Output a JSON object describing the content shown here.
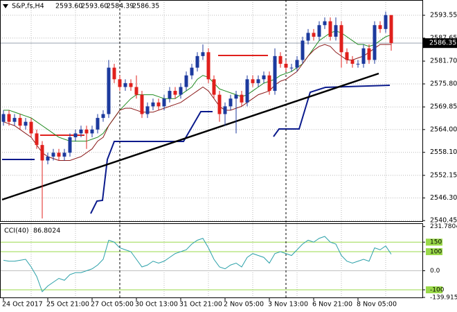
{
  "chart_data": [
    {
      "type": "candlestick",
      "symbol": "S&P,fs,H4",
      "last_bar_labels": [
        "2593.60",
        "2593.60",
        "2584.39",
        "2586.35"
      ],
      "categories": [
        "24 Oct 2017",
        null,
        null,
        null,
        null,
        null,
        null,
        null,
        "25 Oct 21:00",
        null,
        null,
        null,
        null,
        null,
        null,
        null,
        "27 Oct 05:00",
        null,
        null,
        null,
        null,
        null,
        null,
        null,
        "30 Oct 13:00",
        null,
        null,
        null,
        null,
        null,
        null,
        null,
        "31 Oct 21:00",
        null,
        null,
        null,
        null,
        null,
        null,
        null,
        "2 Nov 05:00",
        null,
        null,
        null,
        null,
        null,
        null,
        null,
        "3 Nov 13:00",
        null,
        null,
        null,
        null,
        null,
        null,
        null,
        "6 Nov 21:00",
        null,
        null,
        null,
        null,
        null,
        null,
        null,
        "8 Nov 05:00",
        null,
        null,
        null,
        null,
        null,
        null
      ],
      "open": [
        2566,
        2568,
        2566,
        2567,
        2565,
        2566,
        2563,
        2560,
        2556,
        2557,
        2558,
        2557,
        2558,
        2562,
        2563,
        2564,
        2563,
        2564,
        2567,
        2568,
        2580,
        2577,
        2575,
        2576,
        2575,
        2573,
        2568,
        2570,
        2571,
        2570,
        2572,
        2574,
        2573,
        2575,
        2578,
        2580,
        2583,
        2584,
        2577,
        2573,
        2568,
        2570,
        2572,
        2573,
        2571,
        2577,
        2576,
        2577,
        2578,
        2574,
        2583,
        2581,
        2580,
        2580,
        2582,
        2587,
        2589,
        2588,
        2591,
        2592,
        2588,
        2591,
        2584,
        2582,
        2581,
        2581,
        2585,
        2582,
        2591,
        2590,
        2593.6
      ],
      "high": [
        2569,
        2569,
        2568,
        2568,
        2567,
        2567,
        2564,
        2561,
        2558,
        2559,
        2559,
        2559,
        2563,
        2564,
        2565,
        2565,
        2565,
        2568,
        2569,
        2582,
        2581,
        2578,
        2577,
        2577,
        2578,
        2574,
        2571,
        2572,
        2572,
        2573,
        2575,
        2575,
        2576,
        2579,
        2581,
        2584,
        2586,
        2585,
        2578,
        2574,
        2571,
        2573,
        2574,
        2574,
        2578,
        2578,
        2578,
        2579,
        2579,
        2585,
        2584,
        2582,
        2581,
        2583,
        2588,
        2590,
        2590,
        2592,
        2593,
        2593,
        2593,
        2592,
        2585,
        2583,
        2582,
        2586,
        2586,
        2592,
        2592,
        2594.5,
        2593.6
      ],
      "low": [
        2565,
        2565,
        2565,
        2564,
        2564,
        2562,
        2559,
        2541,
        2555,
        2556,
        2556,
        2556,
        2557,
        2561,
        2562,
        2559,
        2562,
        2563,
        2566,
        2567,
        2576,
        2574,
        2574,
        2574,
        2572,
        2567,
        2567,
        2569,
        2569,
        2569,
        2571,
        2572,
        2572,
        2574,
        2577,
        2579,
        2582,
        2576,
        2572,
        2566,
        2565,
        2569,
        2563,
        2570,
        2570,
        2575,
        2575,
        2576,
        2573,
        2573,
        2580,
        2579,
        2579,
        2579,
        2581,
        2586,
        2587,
        2587,
        2590,
        2587,
        2587,
        2580,
        2581,
        2580,
        2580,
        2580,
        2581,
        2581,
        2589,
        2589,
        2584.39
      ],
      "close": [
        2568,
        2566,
        2567,
        2565,
        2566,
        2563,
        2560,
        2556,
        2557,
        2558,
        2557,
        2558,
        2562,
        2563,
        2564,
        2563,
        2564,
        2567,
        2568,
        2580,
        2577,
        2575,
        2576,
        2575,
        2573,
        2568,
        2570,
        2571,
        2570,
        2572,
        2574,
        2573,
        2575,
        2578,
        2580,
        2583,
        2584,
        2577,
        2573,
        2568,
        2570,
        2572,
        2573,
        2571,
        2577,
        2576,
        2577,
        2578,
        2574,
        2583,
        2581,
        2580,
        2580,
        2582,
        2587,
        2589,
        2588,
        2591,
        2592,
        2588,
        2591,
        2584,
        2582,
        2581,
        2581,
        2585,
        2582,
        2591,
        2590,
        2593.6,
        2586.35
      ],
      "up_color": "#1c3a9e",
      "down_color": "#e0201c",
      "lines": [
        {
          "color": "#1f8a1f",
          "values": [
            2569,
            2569,
            2568.5,
            2568,
            2567.5,
            2567,
            2566,
            2565,
            2564,
            2563,
            2562,
            2561.5,
            2561,
            2561,
            2561,
            2561,
            2561.5,
            2562,
            2563,
            2565,
            2567,
            2569,
            2570.5,
            2572,
            2573,
            2573,
            2573,
            2573,
            2572.5,
            2572,
            2572,
            2572,
            2573,
            2574,
            2575,
            2577,
            2578,
            2577.5,
            2576,
            2574.5,
            2574,
            2573.5,
            2573,
            2572.5,
            2573,
            2574,
            2575,
            2576,
            2576.5,
            2577,
            2578,
            2578.5,
            2579,
            2580,
            2581,
            2583,
            2585,
            2587,
            2588,
            2589,
            2589.5,
            2589,
            2588,
            2587,
            2586,
            2586,
            2585.5,
            2586,
            2587,
            2588,
            2588.5
          ]
        },
        {
          "color": "#8b1a1a",
          "values": [
            2566,
            2565.5,
            2565,
            2564,
            2563,
            2562,
            2560,
            2558,
            2557,
            2556.5,
            2556,
            2556,
            2556,
            2556.5,
            2557,
            2558,
            2559,
            2561,
            2562,
            2565,
            2567,
            2569,
            2569.5,
            2569.5,
            2569,
            2568.5,
            2568.5,
            2568.5,
            2569,
            2569.5,
            2570,
            2570.5,
            2571,
            2572,
            2573,
            2574,
            2575,
            2574,
            2572,
            2570,
            2569,
            2569,
            2569.5,
            2570,
            2571,
            2572,
            2573,
            2573.5,
            2574,
            2575.5,
            2576.5,
            2577,
            2578,
            2579,
            2581,
            2583,
            2584.5,
            2585.5,
            2586,
            2585.5,
            2584,
            2583,
            2582,
            2582,
            2582.5,
            2583,
            2584,
            2585,
            2586,
            2586,
            2586
          ]
        }
      ],
      "ylim": [
        2540.3,
        2597.5
      ],
      "yticks": [
        2593.55,
        2587.65,
        {
          "value": 2581.7,
          "label": "2581.70"
        },
        {
          "value": 2575.8,
          "label": "2575.80"
        },
        2569.85,
        {
          "value": 2564.0,
          "label": "2564.00"
        },
        {
          "value": 2558.1,
          "label": "2558.10"
        },
        2552.15,
        {
          "value": 2546.3,
          "label": "2546.30"
        },
        2540.45
      ],
      "price_tag": {
        "value": 2586.35,
        "label": "2586.35"
      },
      "grid": true
    },
    {
      "type": "line",
      "title": "CCI(40)",
      "color": "#2aa0a8",
      "values": [
        55,
        50,
        50,
        55,
        60,
        20,
        -30,
        -110,
        -80,
        -60,
        -40,
        -50,
        -20,
        -10,
        -10,
        0,
        10,
        30,
        60,
        160,
        150,
        120,
        110,
        100,
        60,
        20,
        30,
        50,
        40,
        50,
        70,
        90,
        100,
        110,
        140,
        160,
        170,
        120,
        60,
        20,
        10,
        30,
        40,
        20,
        70,
        90,
        80,
        70,
        40,
        90,
        100,
        90,
        80,
        110,
        140,
        160,
        150,
        170,
        180,
        150,
        140,
        80,
        50,
        40,
        50,
        60,
        50,
        120,
        110,
        130,
        86.8024
      ],
      "ylim": [
        -143.6,
        249
      ],
      "yticks": [
        231.7804,
        150,
        100,
        {
          "value": 0,
          "label": "0.0"
        },
        -100,
        -139.9154
      ]
    }
  ]
}
